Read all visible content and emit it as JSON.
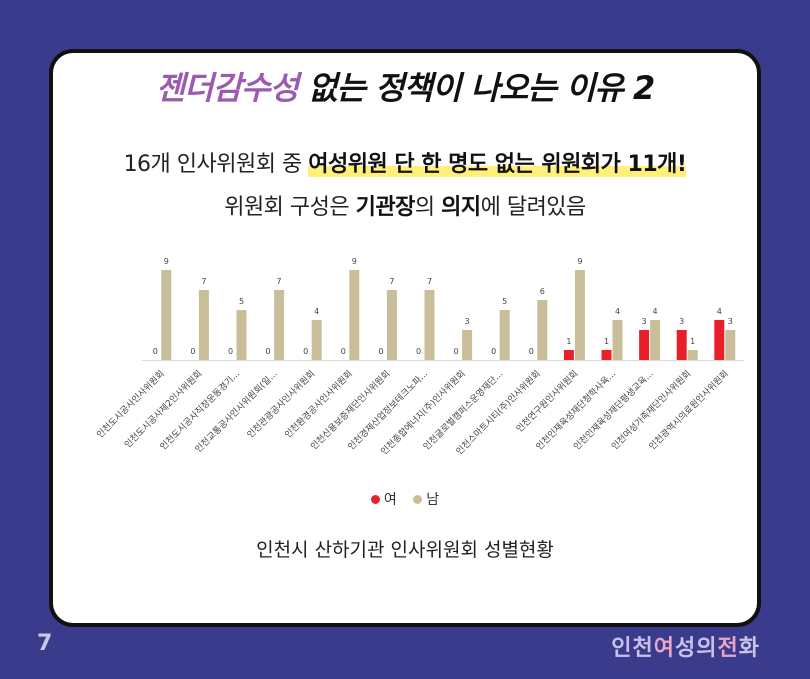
{
  "headline": {
    "accent": "젠더감수성",
    "rest": " 없는 정책이 나오는 이유 2"
  },
  "line1": {
    "pre": "16개 인사위원회 중 ",
    "highlight": "여성위원 단 한 명도 없는 위원회",
    "post": "가 11개!"
  },
  "line2": {
    "pre": "위원회 구성은 ",
    "bold1": "기관장",
    "mid1": "의 ",
    "bold2": "의지",
    "post": "에 달려있음"
  },
  "caption": "인천시 산하기관 인사위원회 성별현황",
  "page_number": "7",
  "brand": {
    "c1": "인천",
    "c2": "여",
    "c3": "성의",
    "c4": "전",
    "c5": "화"
  },
  "colors": {
    "female": "#e8202a",
    "male": "#c8bf9a",
    "background": "#3a3b8c",
    "accent": "#9b5bb0",
    "highlight": "#fff07a"
  },
  "chart_data": {
    "type": "bar",
    "categories": [
      "인천도시공사인사위원회",
      "인천도시공사제2인사위원회",
      "인천도시공사직장운동경기...",
      "인천교통공사인사위원회(일...",
      "인천관광공사인사위원회",
      "인천환경공사인사위원회",
      "인천신용보증재단인사위원회",
      "인천경제산업정보테크노파...",
      "인천종합에너지(주)인사위원회",
      "인천글로벌캠퍼스운영재단...",
      "인천스마트시티(주)인사위원회",
      "인천연구원인사위원회",
      "인천인재육성재단청학사육...",
      "인천인재육성재단평생교육...",
      "인천여성가족재단인사위원회",
      "인천광역시의료원인사위원회"
    ],
    "series": [
      {
        "name": "여",
        "values": [
          0,
          0,
          0,
          0,
          0,
          0,
          0,
          0,
          0,
          0,
          0,
          1,
          1,
          3,
          3,
          4
        ]
      },
      {
        "name": "남",
        "values": [
          9,
          7,
          5,
          7,
          4,
          9,
          7,
          7,
          3,
          5,
          6,
          9,
          4,
          4,
          1,
          3
        ]
      }
    ],
    "ylim": [
      0,
      9
    ],
    "grid": false,
    "legend": "bottom"
  }
}
